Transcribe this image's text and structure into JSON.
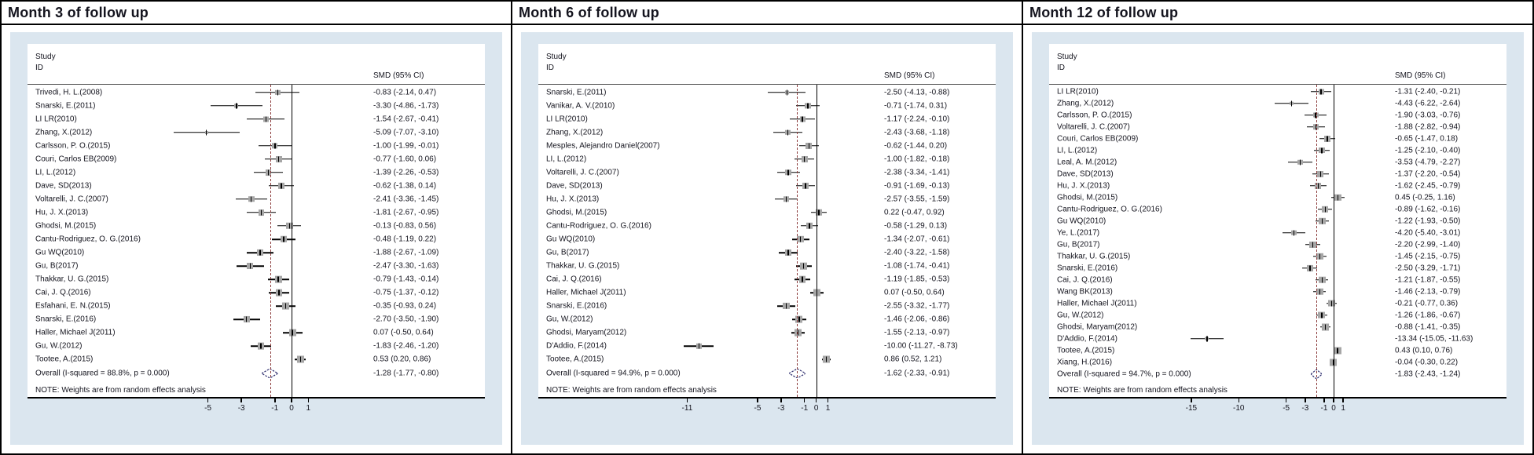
{
  "colors": {
    "panel_bg": "#dbe6ef",
    "dashed_line": "#8b3a3a",
    "zero_line": "#000000",
    "marker_fill": "#a6a6a6",
    "ci_line": "#000000",
    "diamond_stroke": "#2e2e6e",
    "text": "#14141e"
  },
  "chart_data": [
    {
      "type": "forest",
      "title": "Month 3 of follow up",
      "study_header": [
        "Study",
        "ID"
      ],
      "effect_header": "SMD (95% CI)",
      "note": "NOTE: Weights are from random effects analysis",
      "axis_ticks": [
        -5,
        -3,
        -1,
        0,
        1
      ],
      "xlim": [
        -7.8,
        2.3
      ],
      "zero_x": 0,
      "legend_position": "none",
      "studies": [
        {
          "label": "Trivedi, H. L.(2008)",
          "smd": -0.83,
          "lo": -2.14,
          "hi": 0.47,
          "text": "-0.83 (-2.14, 0.47)"
        },
        {
          "label": "Snarski, E.(2011)",
          "smd": -3.3,
          "lo": -4.86,
          "hi": -1.73,
          "text": "-3.30 (-4.86, -1.73)"
        },
        {
          "label": "LI LR(2010)",
          "smd": -1.54,
          "lo": -2.67,
          "hi": -0.41,
          "text": "-1.54 (-2.67, -0.41)"
        },
        {
          "label": "Zhang, X.(2012)",
          "smd": -5.09,
          "lo": -7.07,
          "hi": -3.1,
          "text": "-5.09 (-7.07, -3.10)"
        },
        {
          "label": "Carlsson, P. O.(2015)",
          "smd": -1.0,
          "lo": -1.99,
          "hi": -0.01,
          "text": "-1.00 (-1.99, -0.01)"
        },
        {
          "label": "Couri, Carlos EB(2009)",
          "smd": -0.77,
          "lo": -1.6,
          "hi": 0.06,
          "text": "-0.77 (-1.60, 0.06)"
        },
        {
          "label": "LI, L.(2012)",
          "smd": -1.39,
          "lo": -2.26,
          "hi": -0.53,
          "text": "-1.39 (-2.26, -0.53)"
        },
        {
          "label": "Dave, SD(2013)",
          "smd": -0.62,
          "lo": -1.38,
          "hi": 0.14,
          "text": "-0.62 (-1.38, 0.14)"
        },
        {
          "label": "Voltarelli, J. C.(2007)",
          "smd": -2.41,
          "lo": -3.36,
          "hi": -1.45,
          "text": "-2.41 (-3.36, -1.45)"
        },
        {
          "label": "Hu, J. X.(2013)",
          "smd": -1.81,
          "lo": -2.67,
          "hi": -0.95,
          "text": "-1.81 (-2.67, -0.95)"
        },
        {
          "label": "Ghodsi, M.(2015)",
          "smd": -0.13,
          "lo": -0.83,
          "hi": 0.56,
          "text": "-0.13 (-0.83, 0.56)"
        },
        {
          "label": "Cantu-Rodriguez, O. G.(2016)",
          "smd": -0.48,
          "lo": -1.19,
          "hi": 0.22,
          "text": "-0.48 (-1.19, 0.22)"
        },
        {
          "label": "Gu WQ(2010)",
          "smd": -1.88,
          "lo": -2.67,
          "hi": -1.09,
          "text": "-1.88 (-2.67, -1.09)"
        },
        {
          "label": "Gu, B(2017)",
          "smd": -2.47,
          "lo": -3.3,
          "hi": -1.63,
          "text": "-2.47 (-3.30, -1.63)"
        },
        {
          "label": "Thakkar, U. G.(2015)",
          "smd": -0.79,
          "lo": -1.43,
          "hi": -0.14,
          "text": "-0.79 (-1.43, -0.14)"
        },
        {
          "label": "Cai, J. Q.(2016)",
          "smd": -0.75,
          "lo": -1.37,
          "hi": -0.12,
          "text": "-0.75 (-1.37, -0.12)"
        },
        {
          "label": "Esfahani, E. N.(2015)",
          "smd": -0.35,
          "lo": -0.93,
          "hi": 0.24,
          "text": "-0.35 (-0.93, 0.24)"
        },
        {
          "label": "Snarski, E.(2016)",
          "smd": -2.7,
          "lo": -3.5,
          "hi": -1.9,
          "text": "-2.70 (-3.50, -1.90)"
        },
        {
          "label": "Haller, Michael J(2011)",
          "smd": 0.07,
          "lo": -0.5,
          "hi": 0.64,
          "text": "0.07 (-0.50, 0.64)"
        },
        {
          "label": "Gu, W.(2012)",
          "smd": -1.83,
          "lo": -2.46,
          "hi": -1.2,
          "text": "-1.83 (-2.46, -1.20)"
        },
        {
          "label": "Tootee, A.(2015)",
          "smd": 0.53,
          "lo": 0.2,
          "hi": 0.86,
          "text": "0.53 (0.20, 0.86)"
        }
      ],
      "overall": {
        "label": "Overall  (I-squared = 88.8%, p = 0.000)",
        "smd": -1.28,
        "lo": -1.77,
        "hi": -0.8,
        "text": "-1.28 (-1.77, -0.80)"
      }
    },
    {
      "type": "forest",
      "title": "Month 6 of follow up",
      "study_header": [
        "Study",
        "ID"
      ],
      "effect_header": "SMD (95% CI)",
      "note": "NOTE: Weights are from random effects analysis",
      "axis_ticks": [
        -11,
        -5,
        -3,
        -1,
        0,
        1
      ],
      "xlim": [
        -12.3,
        2.1
      ],
      "zero_x": 0,
      "legend_position": "none",
      "studies": [
        {
          "label": "Snarski, E.(2011)",
          "smd": -2.5,
          "lo": -4.13,
          "hi": -0.88,
          "text": "-2.50 (-4.13, -0.88)"
        },
        {
          "label": "Vanikar, A. V.(2010)",
          "smd": -0.71,
          "lo": -1.74,
          "hi": 0.31,
          "text": "-0.71 (-1.74, 0.31)"
        },
        {
          "label": "LI LR(2010)",
          "smd": -1.17,
          "lo": -2.24,
          "hi": -0.1,
          "text": "-1.17 (-2.24, -0.10)"
        },
        {
          "label": "Zhang, X.(2012)",
          "smd": -2.43,
          "lo": -3.68,
          "hi": -1.18,
          "text": "-2.43 (-3.68, -1.18)"
        },
        {
          "label": "Mesples, Alejandro Daniel(2007)",
          "smd": -0.62,
          "lo": -1.44,
          "hi": 0.2,
          "text": "-0.62 (-1.44, 0.20)"
        },
        {
          "label": "LI, L.(2012)",
          "smd": -1.0,
          "lo": -1.82,
          "hi": -0.18,
          "text": "-1.00 (-1.82, -0.18)"
        },
        {
          "label": "Voltarelli, J. C.(2007)",
          "smd": -2.38,
          "lo": -3.34,
          "hi": -1.41,
          "text": "-2.38 (-3.34, -1.41)"
        },
        {
          "label": "Dave, SD(2013)",
          "smd": -0.91,
          "lo": -1.69,
          "hi": -0.13,
          "text": "-0.91 (-1.69, -0.13)"
        },
        {
          "label": "Hu, J. X.(2013)",
          "smd": -2.57,
          "lo": -3.55,
          "hi": -1.59,
          "text": "-2.57 (-3.55, -1.59)"
        },
        {
          "label": "Ghodsi, M.(2015)",
          "smd": 0.22,
          "lo": -0.47,
          "hi": 0.92,
          "text": "0.22 (-0.47, 0.92)"
        },
        {
          "label": "Cantu-Rodriguez, O. G.(2016)",
          "smd": -0.58,
          "lo": -1.29,
          "hi": 0.13,
          "text": "-0.58 (-1.29, 0.13)"
        },
        {
          "label": "Gu WQ(2010)",
          "smd": -1.34,
          "lo": -2.07,
          "hi": -0.61,
          "text": "-1.34 (-2.07, -0.61)"
        },
        {
          "label": "Gu, B(2017)",
          "smd": -2.4,
          "lo": -3.22,
          "hi": -1.58,
          "text": "-2.40 (-3.22, -1.58)"
        },
        {
          "label": "Thakkar, U. G.(2015)",
          "smd": -1.08,
          "lo": -1.74,
          "hi": -0.41,
          "text": "-1.08 (-1.74, -0.41)"
        },
        {
          "label": "Cai, J. Q.(2016)",
          "smd": -1.19,
          "lo": -1.85,
          "hi": -0.53,
          "text": "-1.19 (-1.85, -0.53)"
        },
        {
          "label": "Haller, Michael J(2011)",
          "smd": 0.07,
          "lo": -0.5,
          "hi": 0.64,
          "text": "0.07 (-0.50, 0.64)"
        },
        {
          "label": "Snarski, E.(2016)",
          "smd": -2.55,
          "lo": -3.32,
          "hi": -1.77,
          "text": "-2.55 (-3.32, -1.77)"
        },
        {
          "label": "Gu, W.(2012)",
          "smd": -1.46,
          "lo": -2.06,
          "hi": -0.86,
          "text": "-1.46 (-2.06, -0.86)"
        },
        {
          "label": "Ghodsi, Maryam(2012)",
          "smd": -1.55,
          "lo": -2.13,
          "hi": -0.97,
          "text": "-1.55 (-2.13, -0.97)"
        },
        {
          "label": "D'Addio, F.(2014)",
          "smd": -10.0,
          "lo": -11.27,
          "hi": -8.73,
          "text": "-10.00 (-11.27, -8.73)"
        },
        {
          "label": "Tootee, A.(2015)",
          "smd": 0.86,
          "lo": 0.52,
          "hi": 1.21,
          "text": "0.86 (0.52, 1.21)"
        }
      ],
      "overall": {
        "label": "Overall  (I-squared = 94.9%, p = 0.000)",
        "smd": -1.62,
        "lo": -2.33,
        "hi": -0.91,
        "text": "-1.62 (-2.33, -0.91)"
      }
    },
    {
      "type": "forest",
      "title": "Month 12 of follow up",
      "study_header": [
        "Study",
        "ID"
      ],
      "effect_header": "SMD (95% CI)",
      "note": "NOTE: Weights are from random effects analysis",
      "axis_ticks": [
        -15,
        -10,
        -5,
        -3,
        -1,
        0,
        1
      ],
      "xlim": [
        -15.9,
        1.9
      ],
      "zero_x": 0,
      "legend_position": "none",
      "studies": [
        {
          "label": "LI LR(2010)",
          "smd": -1.31,
          "lo": -2.4,
          "hi": -0.21,
          "text": "-1.31 (-2.40, -0.21)"
        },
        {
          "label": "Zhang, X.(2012)",
          "smd": -4.43,
          "lo": -6.22,
          "hi": -2.64,
          "text": "-4.43 (-6.22, -2.64)"
        },
        {
          "label": "Carlsson, P. O.(2015)",
          "smd": -1.9,
          "lo": -3.03,
          "hi": -0.76,
          "text": "-1.90 (-3.03, -0.76)"
        },
        {
          "label": "Voltarelli, J. C.(2007)",
          "smd": -1.88,
          "lo": -2.82,
          "hi": -0.94,
          "text": "-1.88 (-2.82, -0.94)"
        },
        {
          "label": "Couri, Carlos EB(2009)",
          "smd": -0.65,
          "lo": -1.47,
          "hi": 0.18,
          "text": "-0.65 (-1.47, 0.18)"
        },
        {
          "label": "LI, L.(2012)",
          "smd": -1.25,
          "lo": -2.1,
          "hi": -0.4,
          "text": "-1.25 (-2.10, -0.40)"
        },
        {
          "label": "Leal, A. M.(2012)",
          "smd": -3.53,
          "lo": -4.79,
          "hi": -2.27,
          "text": "-3.53 (-4.79, -2.27)"
        },
        {
          "label": "Dave, SD(2013)",
          "smd": -1.37,
          "lo": -2.2,
          "hi": -0.54,
          "text": "-1.37 (-2.20, -0.54)"
        },
        {
          "label": "Hu, J. X.(2013)",
          "smd": -1.62,
          "lo": -2.45,
          "hi": -0.79,
          "text": "-1.62 (-2.45, -0.79)"
        },
        {
          "label": "Ghodsi, M.(2015)",
          "smd": 0.45,
          "lo": -0.25,
          "hi": 1.16,
          "text": "0.45 (-0.25, 1.16)"
        },
        {
          "label": "Cantu-Rodriguez, O. G.(2016)",
          "smd": -0.89,
          "lo": -1.62,
          "hi": -0.16,
          "text": "-0.89 (-1.62, -0.16)"
        },
        {
          "label": "Gu WQ(2010)",
          "smd": -1.22,
          "lo": -1.93,
          "hi": -0.5,
          "text": "-1.22 (-1.93, -0.50)"
        },
        {
          "label": "Ye, L.(2017)",
          "smd": -4.2,
          "lo": -5.4,
          "hi": -3.01,
          "text": "-4.20 (-5.40, -3.01)"
        },
        {
          "label": "Gu, B(2017)",
          "smd": -2.2,
          "lo": -2.99,
          "hi": -1.4,
          "text": "-2.20 (-2.99, -1.40)"
        },
        {
          "label": "Thakkar, U. G.(2015)",
          "smd": -1.45,
          "lo": -2.15,
          "hi": -0.75,
          "text": "-1.45 (-2.15, -0.75)"
        },
        {
          "label": "Snarski, E.(2016)",
          "smd": -2.5,
          "lo": -3.29,
          "hi": -1.71,
          "text": "-2.50 (-3.29, -1.71)"
        },
        {
          "label": "Cai, J. Q.(2016)",
          "smd": -1.21,
          "lo": -1.87,
          "hi": -0.55,
          "text": "-1.21 (-1.87, -0.55)"
        },
        {
          "label": "Wang BK(2013)",
          "smd": -1.46,
          "lo": -2.13,
          "hi": -0.79,
          "text": "-1.46 (-2.13, -0.79)"
        },
        {
          "label": "Haller, Michael J(2011)",
          "smd": -0.21,
          "lo": -0.77,
          "hi": 0.36,
          "text": "-0.21 (-0.77, 0.36)"
        },
        {
          "label": "Gu, W.(2012)",
          "smd": -1.26,
          "lo": -1.86,
          "hi": -0.67,
          "text": "-1.26 (-1.86, -0.67)"
        },
        {
          "label": "Ghodsi, Maryam(2012)",
          "smd": -0.88,
          "lo": -1.41,
          "hi": -0.35,
          "text": "-0.88 (-1.41, -0.35)"
        },
        {
          "label": "D'Addio, F.(2014)",
          "smd": -13.34,
          "lo": -15.05,
          "hi": -11.63,
          "text": "-13.34 (-15.05, -11.63)"
        },
        {
          "label": "Tootee, A.(2015)",
          "smd": 0.43,
          "lo": 0.1,
          "hi": 0.76,
          "text": "0.43 (0.10, 0.76)"
        },
        {
          "label": "Xiang, H.(2016)",
          "smd": -0.04,
          "lo": -0.3,
          "hi": 0.22,
          "text": "-0.04 (-0.30, 0.22)"
        }
      ],
      "overall": {
        "label": "Overall  (I-squared = 94.7%, p = 0.000)",
        "smd": -1.83,
        "lo": -2.43,
        "hi": -1.24,
        "text": "-1.83 (-2.43, -1.24)"
      }
    }
  ]
}
